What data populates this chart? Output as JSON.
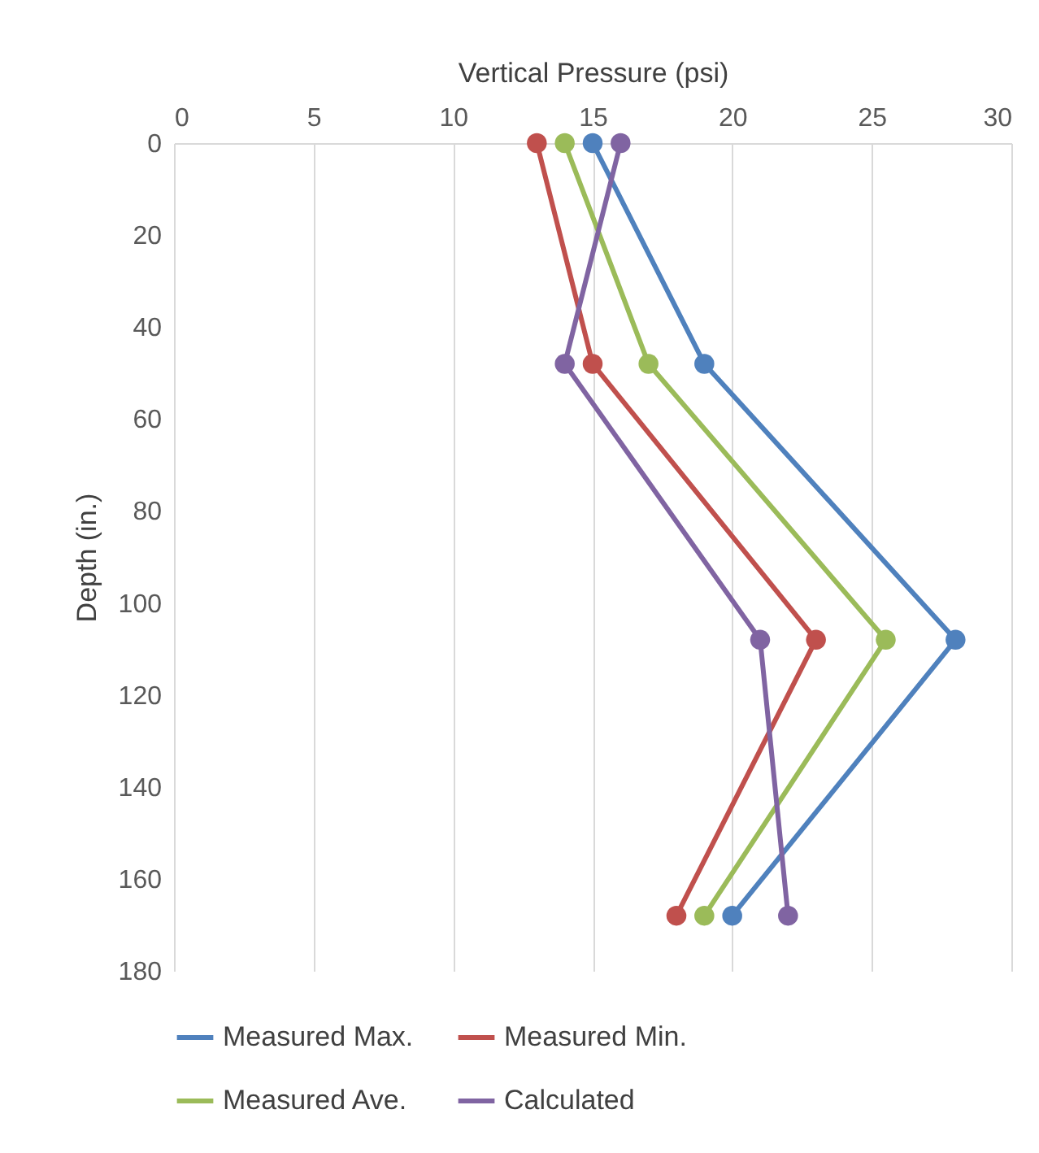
{
  "chart_data": {
    "type": "line",
    "orientation": "horizontal",
    "xlabel": "Vertical Pressure (psi)",
    "ylabel": "Depth (in.)",
    "x": [
      0,
      48,
      108,
      168
    ],
    "series": [
      {
        "name": "Measured Max.",
        "color": "#4f81bd",
        "values": [
          15,
          19,
          28,
          20
        ]
      },
      {
        "name": "Measured Min.",
        "color": "#c0504d",
        "values": [
          13,
          15,
          23,
          18
        ]
      },
      {
        "name": "Measured Ave.",
        "color": "#9bbb59",
        "values": [
          14,
          17,
          25.5,
          19
        ]
      },
      {
        "name": "Calculated",
        "color": "#8064a2",
        "values": [
          16,
          14,
          21,
          22
        ]
      }
    ],
    "xlim": [
      0,
      30
    ],
    "xticks": [
      0,
      5,
      10,
      15,
      20,
      25,
      30
    ],
    "ylim": [
      180,
      0
    ],
    "yticks": [
      0,
      20,
      40,
      60,
      80,
      100,
      120,
      140,
      160,
      180
    ],
    "grid": "x",
    "legend": "bottom",
    "marker": "circle",
    "line_style": "solid"
  }
}
